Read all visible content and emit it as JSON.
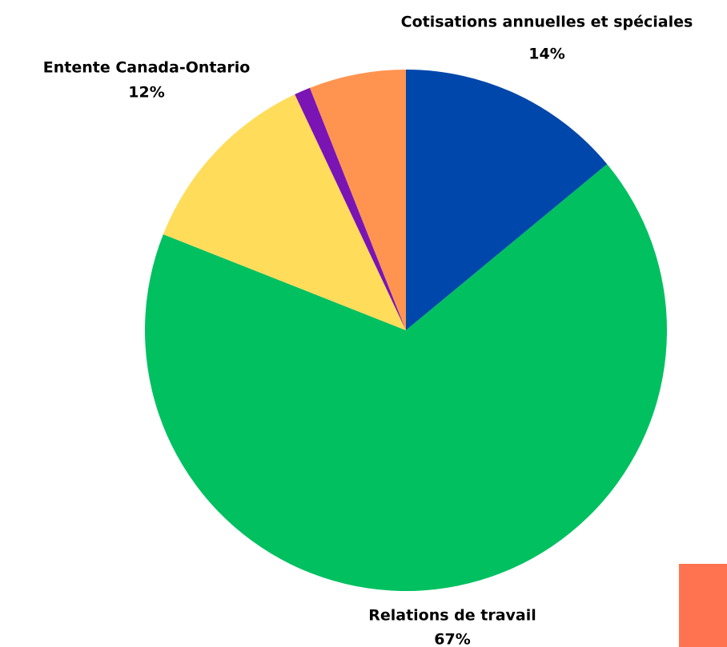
{
  "chart_data": {
    "type": "pie",
    "categories": [
      "Cotisations annuelles et spéciales",
      "Relations de travail",
      "Entente Canada-Ontario",
      null,
      null
    ],
    "values": [
      14,
      67,
      12,
      1,
      6
    ],
    "value_labels": [
      "14%",
      "67%",
      "12%",
      null,
      null
    ],
    "colors": [
      "#0047ab",
      "#00c060",
      "#ffdc5a",
      "#7a14b4",
      "#ff9450"
    ]
  }
}
